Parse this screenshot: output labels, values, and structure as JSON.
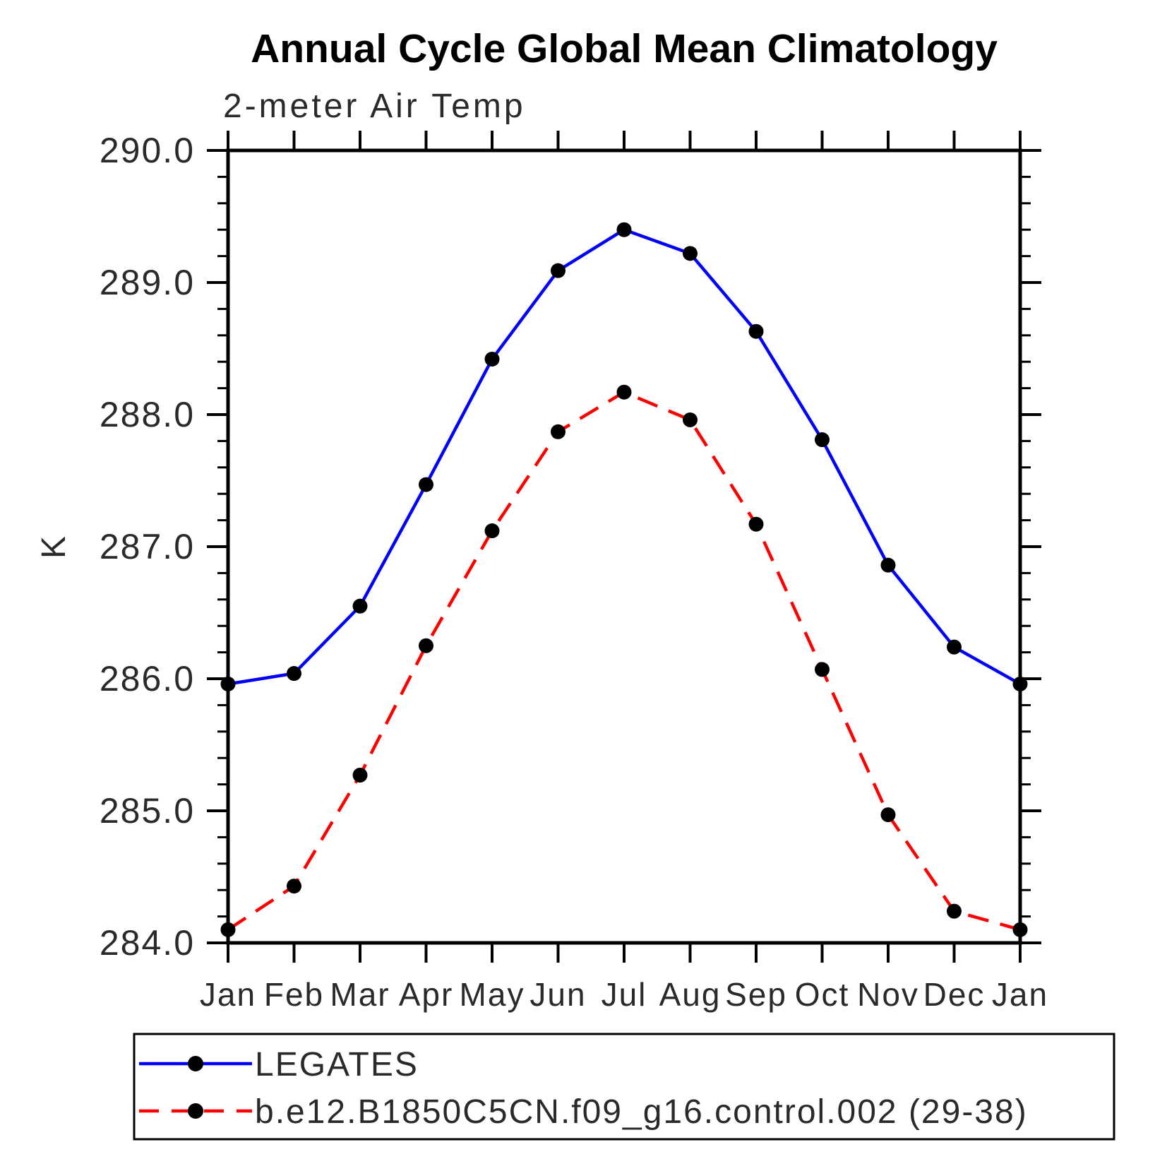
{
  "chart_data": {
    "type": "line",
    "title": "Annual Cycle Global Mean Climatology",
    "subtitle": "2-meter Air Temp",
    "ylabel": "K",
    "xlabel": "",
    "x_tick_labels": [
      "Jan",
      "Feb",
      "Mar",
      "Apr",
      "May",
      "Jun",
      "Jul",
      "Aug",
      "Sep",
      "Oct",
      "Nov",
      "Dec",
      "Jan"
    ],
    "ylim": [
      284.0,
      290.0
    ],
    "y_major_step": 1.0,
    "y_minor_step": 0.2,
    "y_tick_labels": [
      "290.0",
      "289.0",
      "288.0",
      "287.0",
      "286.0",
      "285.0",
      "284.0"
    ],
    "grid": false,
    "marker": "filled-circle",
    "marker_color": "#000000",
    "series": [
      {
        "name": "LEGATES",
        "color": "#0000ff",
        "style": "solid",
        "values": [
          285.96,
          286.04,
          286.55,
          287.47,
          288.42,
          289.09,
          289.4,
          289.22,
          288.63,
          287.81,
          286.86,
          286.24,
          285.96
        ]
      },
      {
        "name": "b.e12.B1850C5CN.f09_g16.control.002 (29-38)",
        "color": "#ff0000",
        "style": "dashed",
        "values": [
          284.1,
          284.43,
          285.27,
          286.25,
          287.12,
          287.87,
          288.17,
          287.96,
          287.17,
          286.07,
          284.97,
          284.24,
          284.1
        ]
      }
    ],
    "legend": {
      "position": "bottom-left",
      "entries": [
        "LEGATES",
        "b.e12.B1850C5CN.f09_g16.control.002 (29-38)"
      ]
    },
    "frame_color": "#000000"
  }
}
